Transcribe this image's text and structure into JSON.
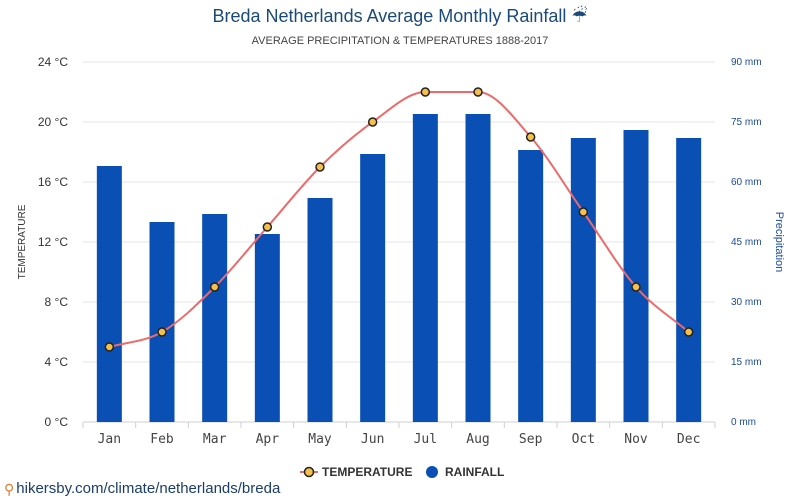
{
  "header": {
    "title": "Breda Netherlands Average Monthly Rainfall ☔",
    "subtitle": "AVERAGE PRECIPITATION & TEMPERATURES 1888-2017"
  },
  "source": {
    "url_text": "hikersby.com/climate/netherlands/breda"
  },
  "colors": {
    "bar": "#0a4fb4",
    "line": "#ee6a6a",
    "point_fill": "#f5c04a",
    "point_stroke": "#222222",
    "axis_text": "#333333",
    "right_axis_text": "#1a4a9a",
    "grid": "#e6e6e6"
  },
  "chart_data": {
    "type": "bar",
    "categories": [
      "Jan",
      "Feb",
      "Mar",
      "Apr",
      "May",
      "Jun",
      "Jul",
      "Aug",
      "Sep",
      "Oct",
      "Nov",
      "Dec"
    ],
    "series": [
      {
        "name": "TEMPERATURE",
        "type": "line",
        "axis": "left",
        "unit": "°C",
        "values": [
          5,
          6,
          9,
          13,
          17,
          20,
          22,
          22,
          19,
          14,
          9,
          6
        ]
      },
      {
        "name": "RAINFALL",
        "type": "bar",
        "axis": "right",
        "unit": "mm",
        "values": [
          64,
          50,
          52,
          47,
          56,
          67,
          77,
          77,
          68,
          71,
          73,
          71
        ]
      }
    ],
    "ylabel_left": "TEMPERATURE",
    "ylabel_right": "Precipitation",
    "ylim_left": [
      0,
      24
    ],
    "ylim_right": [
      0,
      90
    ],
    "yticks_left": [
      "0 °C",
      "4 °C",
      "8 °C",
      "12 °C",
      "16 °C",
      "20 °C",
      "24 °C"
    ],
    "yticks_right": [
      "0 mm",
      "15 mm",
      "30 mm",
      "45 mm",
      "60 mm",
      "75 mm",
      "90 mm"
    ],
    "grid": true,
    "legend_placement": "bottom-center"
  }
}
